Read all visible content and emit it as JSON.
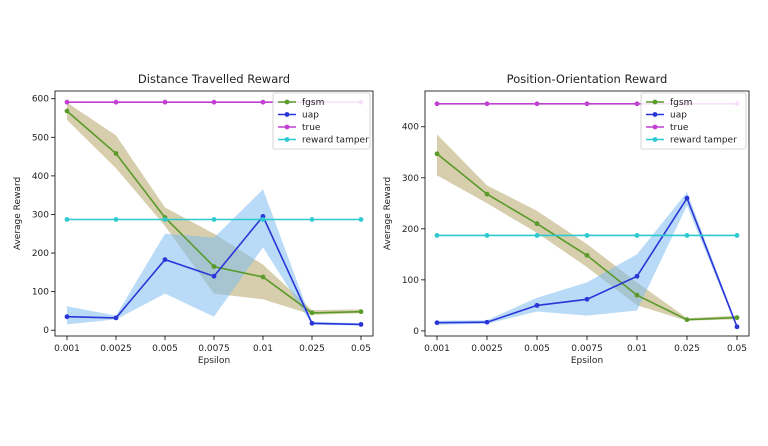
{
  "chart_data": [
    {
      "type": "line",
      "title": "Distance Travelled Reward",
      "xlabel": "Epsilon",
      "ylabel": "Average Reward",
      "categories": [
        "0.001",
        "0.0025",
        "0.005",
        "0.0075",
        "0.01",
        "0.025",
        "0.05"
      ],
      "ylim": [
        -15,
        620
      ],
      "yticks": [
        0,
        100,
        200,
        300,
        400,
        500,
        600
      ],
      "grid": false,
      "legend_position": "top-right",
      "series": [
        {
          "name": "fgsm",
          "color": "#5a9a2a",
          "band_color": "#b5a668",
          "values": [
            568,
            458,
            292,
            165,
            138,
            45,
            48
          ],
          "lower": [
            545,
            420,
            270,
            95,
            80,
            40,
            44
          ],
          "upper": [
            590,
            505,
            318,
            250,
            170,
            52,
            54
          ]
        },
        {
          "name": "uap",
          "color": "#2a35d8",
          "band_color": "#80bdf0",
          "values": [
            35,
            32,
            183,
            140,
            295,
            18,
            15
          ],
          "lower": [
            15,
            28,
            95,
            35,
            215,
            14,
            12
          ],
          "upper": [
            62,
            38,
            250,
            240,
            365,
            22,
            18
          ]
        },
        {
          "name": "true",
          "color": "#c040d0",
          "values": [
            591,
            591,
            591,
            591,
            591,
            591,
            591
          ]
        },
        {
          "name": "reward tamper",
          "color": "#2cc9cf",
          "values": [
            287,
            287,
            287,
            287,
            287,
            287,
            287
          ]
        }
      ]
    },
    {
      "type": "line",
      "title": "Position-Orientation Reward",
      "xlabel": "Epsilon",
      "ylabel": "Average Reward",
      "categories": [
        "0.001",
        "0.0025",
        "0.005",
        "0.0075",
        "0.01",
        "0.025",
        "0.05"
      ],
      "ylim": [
        -10,
        470
      ],
      "yticks": [
        0,
        100,
        200,
        300,
        400
      ],
      "grid": false,
      "legend_position": "top-right",
      "series": [
        {
          "name": "fgsm",
          "color": "#5a9a2a",
          "band_color": "#b5a668",
          "values": [
            347,
            268,
            210,
            148,
            70,
            22,
            26
          ],
          "lower": [
            305,
            250,
            192,
            125,
            50,
            20,
            23
          ],
          "upper": [
            385,
            285,
            235,
            170,
            95,
            25,
            30
          ]
        },
        {
          "name": "uap",
          "color": "#2a35d8",
          "band_color": "#80bdf0",
          "values": [
            16,
            17,
            50,
            62,
            107,
            260,
            8
          ],
          "lower": [
            12,
            14,
            38,
            30,
            40,
            245,
            5
          ],
          "upper": [
            20,
            21,
            65,
            95,
            150,
            272,
            12
          ]
        },
        {
          "name": "true",
          "color": "#c040d0",
          "values": [
            445,
            445,
            445,
            445,
            445,
            445,
            445
          ]
        },
        {
          "name": "reward tamper",
          "color": "#2cc9cf",
          "values": [
            187,
            187,
            187,
            187,
            187,
            187,
            187
          ]
        }
      ]
    }
  ]
}
